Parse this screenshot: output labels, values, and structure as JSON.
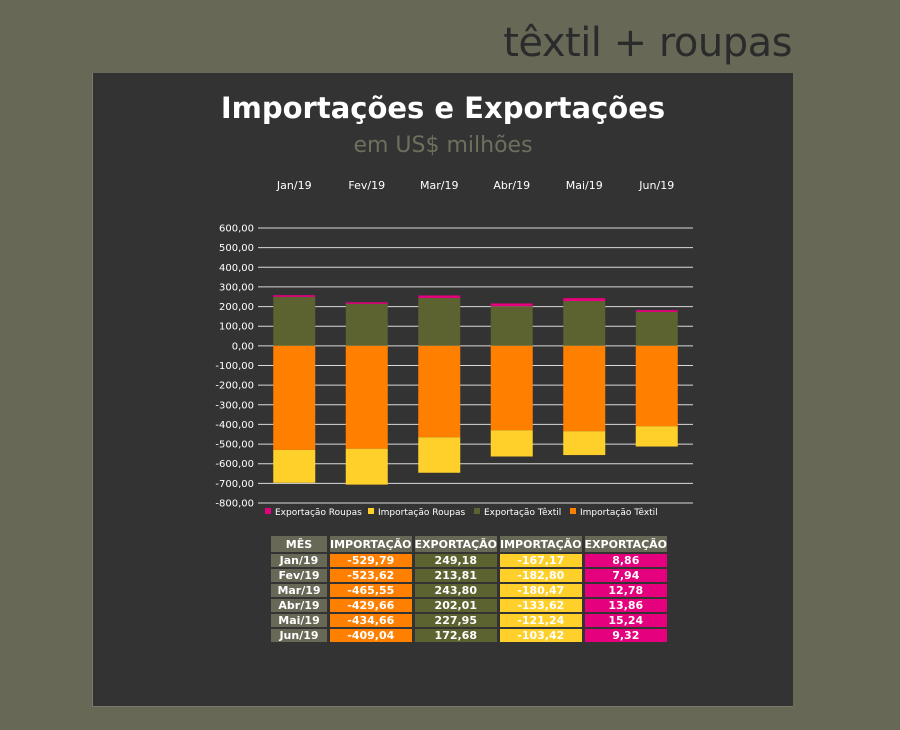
{
  "brand": "têxtil + roupas",
  "chart_data": {
    "type": "bar",
    "stacked": true,
    "title": "Importações e Exportações",
    "subtitle": "em US$ milhões",
    "categories": [
      "Jan/19",
      "Fev/19",
      "Mar/19",
      "Abr/19",
      "Mai/19",
      "Jun/19"
    ],
    "ylim": [
      -800,
      600
    ],
    "yticks": [
      "600,00",
      "500,00",
      "400,00",
      "300,00",
      "200,00",
      "100,00",
      "0,00",
      "-100,00",
      "-200,00",
      "-300,00",
      "-400,00",
      "-500,00",
      "-600,00",
      "-700,00",
      "-800,00"
    ],
    "grid": true,
    "legend_position": "bottom",
    "series": [
      {
        "name": "Exportação Roupas",
        "color": "#e5007d",
        "values": [
          8.86,
          7.94,
          12.78,
          13.86,
          15.24,
          9.32
        ]
      },
      {
        "name": "Importação Roupas",
        "color": "#ffd02a",
        "values": [
          -167.17,
          -182.8,
          -180.47,
          -133.62,
          -121.24,
          -103.42
        ]
      },
      {
        "name": "Exportação Têxtil",
        "color": "#5d6330",
        "values": [
          249.18,
          213.81,
          243.8,
          202.01,
          227.95,
          172.68
        ]
      },
      {
        "name": "Importação Têxtil",
        "color": "#ff8000",
        "values": [
          -529.79,
          -523.62,
          -465.55,
          -429.66,
          -434.66,
          -409.04
        ]
      }
    ]
  },
  "table": {
    "headers": [
      "MÊS",
      "IMPORTAÇÃO",
      "EXPORTAÇÃO",
      "IMPORTAÇÃO",
      "EXPORTAÇÃO"
    ],
    "rows": [
      [
        "Jan/19",
        "-529,79",
        "249,18",
        "-167,17",
        "8,86"
      ],
      [
        "Fev/19",
        "-523,62",
        "213,81",
        "-182,80",
        "7,94"
      ],
      [
        "Mar/19",
        "-465,55",
        "243,80",
        "-180,47",
        "12,78"
      ],
      [
        "Abr/19",
        "-429,66",
        "202,01",
        "-133,62",
        "13,86"
      ],
      [
        "Mai/19",
        "-434,66",
        "227,95",
        "-121,24",
        "15,24"
      ],
      [
        "Jun/19",
        "-409,04",
        "172,68",
        "-103,42",
        "9,32"
      ]
    ]
  }
}
